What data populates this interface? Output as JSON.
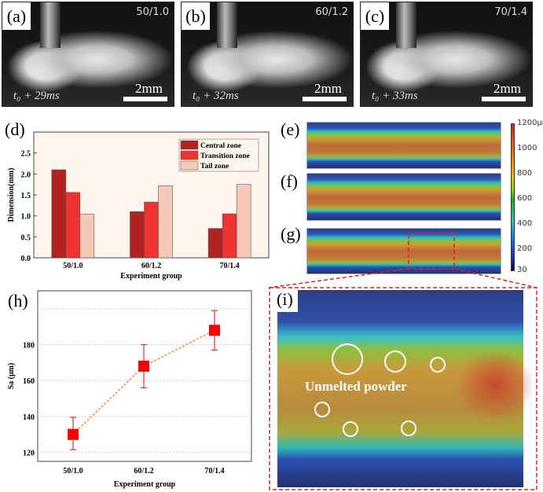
{
  "photos": [
    {
      "label": "(a)",
      "condition": "50/1.0",
      "time": "t₀ + 29ms",
      "scale": "2mm"
    },
    {
      "label": "(b)",
      "condition": "60/1.2",
      "time": "t₀ + 32ms",
      "scale": "2mm"
    },
    {
      "label": "(c)",
      "condition": "70/1.4",
      "time": "t₀ + 33ms",
      "scale": "2mm"
    }
  ],
  "maps": {
    "labels": [
      "(e)",
      "(f)",
      "(g)"
    ],
    "zoom_label": "(i)",
    "annotation": "Unmelted powder",
    "colorbar": {
      "ticks": [
        "1200μm",
        "1000",
        "800",
        "600",
        "400",
        "200",
        "30"
      ]
    }
  },
  "chart_data": [
    {
      "type": "bar",
      "panel": "(d)",
      "categories": [
        "50/1.0",
        "60/1.2",
        "70/1.4"
      ],
      "series": [
        {
          "name": "Central zone",
          "values": [
            2.1,
            1.1,
            0.7
          ],
          "color": "#b22222"
        },
        {
          "name": "Transition zone",
          "values": [
            1.56,
            1.33,
            1.05
          ],
          "color": "#ee3333"
        },
        {
          "name": "Tail zone",
          "values": [
            1.04,
            1.72,
            1.75
          ],
          "color": "#f5c9b8"
        }
      ],
      "xlabel": "Experiment group",
      "ylabel": "Dimension(mm)",
      "ylim": [
        0,
        3
      ],
      "yticks": [
        "0.0",
        "0.5",
        "1.0",
        "1.5",
        "2.0",
        "2.5"
      ],
      "legend": "top-right"
    },
    {
      "type": "line",
      "panel": "(h)",
      "categories": [
        "50/1.0",
        "60/1.2",
        "70/1.4"
      ],
      "values": [
        130,
        168,
        188
      ],
      "error_low": [
        121.5,
        156,
        177
      ],
      "error_high": [
        139.5,
        180,
        199
      ],
      "xlabel": "Experiment group",
      "ylabel": "Sa (μm)",
      "ylim": [
        115,
        210
      ],
      "yticks": [
        "120",
        "140",
        "160",
        "180"
      ],
      "grid": true,
      "color": "#ff0000",
      "line_color": "#f08a30"
    }
  ]
}
